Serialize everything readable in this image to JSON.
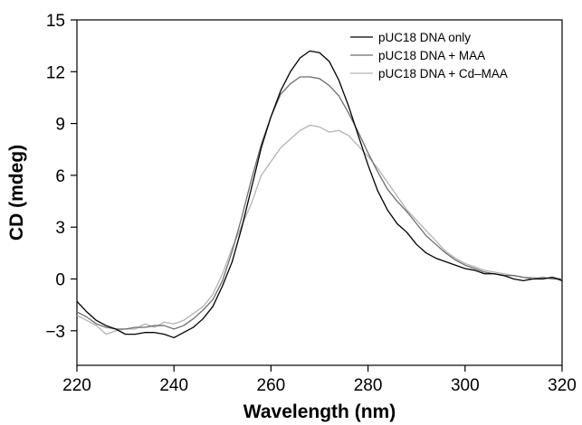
{
  "chart_data": {
    "type": "line",
    "xlabel": "Wavelength (nm)",
    "ylabel": "CD (mdeg)",
    "xlim": [
      220,
      320
    ],
    "ylim": [
      -5,
      15
    ],
    "xticks": [
      220,
      240,
      260,
      280,
      300,
      320
    ],
    "yticks": [
      -3,
      0,
      3,
      6,
      9,
      12,
      15
    ],
    "ytick_labels": [
      "−3",
      "0",
      "3",
      "6",
      "9",
      "12",
      "15"
    ],
    "legend_position": "top-right",
    "grid": false,
    "series": [
      {
        "name": "pUC18 DNA only",
        "color": "#000000",
        "points": [
          [
            220,
            -1.3
          ],
          [
            222,
            -1.9
          ],
          [
            224,
            -2.4
          ],
          [
            226,
            -2.7
          ],
          [
            228,
            -2.9
          ],
          [
            230,
            -3.2
          ],
          [
            232,
            -3.2
          ],
          [
            234,
            -3.1
          ],
          [
            236,
            -3.1
          ],
          [
            238,
            -3.2
          ],
          [
            240,
            -3.4
          ],
          [
            242,
            -3.1
          ],
          [
            244,
            -2.8
          ],
          [
            246,
            -2.3
          ],
          [
            248,
            -1.6
          ],
          [
            250,
            -0.4
          ],
          [
            252,
            1.0
          ],
          [
            254,
            3.0
          ],
          [
            256,
            5.3
          ],
          [
            258,
            7.6
          ],
          [
            260,
            9.4
          ],
          [
            262,
            10.9
          ],
          [
            264,
            12.0
          ],
          [
            266,
            12.8
          ],
          [
            268,
            13.2
          ],
          [
            270,
            13.1
          ],
          [
            272,
            12.6
          ],
          [
            274,
            11.5
          ],
          [
            276,
            10.0
          ],
          [
            278,
            8.3
          ],
          [
            280,
            6.6
          ],
          [
            282,
            5.1
          ],
          [
            284,
            4.0
          ],
          [
            286,
            3.2
          ],
          [
            288,
            2.7
          ],
          [
            290,
            2.0
          ],
          [
            292,
            1.5
          ],
          [
            294,
            1.2
          ],
          [
            296,
            1.0
          ],
          [
            298,
            0.8
          ],
          [
            300,
            0.6
          ],
          [
            302,
            0.5
          ],
          [
            304,
            0.3
          ],
          [
            306,
            0.3
          ],
          [
            308,
            0.2
          ],
          [
            310,
            0.0
          ],
          [
            312,
            -0.1
          ],
          [
            314,
            0.0
          ],
          [
            316,
            0.0
          ],
          [
            318,
            0.1
          ],
          [
            320,
            -0.1
          ]
        ]
      },
      {
        "name": "pUC18 DNA + MAA",
        "color": "#6e6e6e",
        "points": [
          [
            220,
            -1.9
          ],
          [
            222,
            -2.2
          ],
          [
            224,
            -2.6
          ],
          [
            226,
            -2.8
          ],
          [
            228,
            -2.9
          ],
          [
            230,
            -2.9
          ],
          [
            232,
            -2.8
          ],
          [
            234,
            -2.8
          ],
          [
            236,
            -2.7
          ],
          [
            238,
            -2.7
          ],
          [
            240,
            -2.9
          ],
          [
            242,
            -2.7
          ],
          [
            244,
            -2.3
          ],
          [
            246,
            -1.8
          ],
          [
            248,
            -1.2
          ],
          [
            250,
            -0.1
          ],
          [
            252,
            1.6
          ],
          [
            254,
            3.6
          ],
          [
            256,
            5.8
          ],
          [
            258,
            7.8
          ],
          [
            260,
            9.4
          ],
          [
            262,
            10.7
          ],
          [
            264,
            11.3
          ],
          [
            266,
            11.7
          ],
          [
            268,
            11.7
          ],
          [
            270,
            11.6
          ],
          [
            272,
            11.2
          ],
          [
            274,
            10.6
          ],
          [
            276,
            9.6
          ],
          [
            278,
            8.5
          ],
          [
            280,
            7.3
          ],
          [
            282,
            6.2
          ],
          [
            284,
            5.2
          ],
          [
            286,
            4.5
          ],
          [
            288,
            3.9
          ],
          [
            290,
            3.2
          ],
          [
            292,
            2.5
          ],
          [
            294,
            2.0
          ],
          [
            296,
            1.5
          ],
          [
            298,
            1.1
          ],
          [
            300,
            0.8
          ],
          [
            302,
            0.6
          ],
          [
            304,
            0.4
          ],
          [
            306,
            0.3
          ],
          [
            308,
            0.2
          ],
          [
            310,
            0.2
          ],
          [
            312,
            0.1
          ],
          [
            314,
            0.0
          ],
          [
            316,
            0.1
          ],
          [
            318,
            0.0
          ],
          [
            320,
            0.0
          ]
        ]
      },
      {
        "name": "pUC18 DNA + Cd–MAA",
        "color": "#b4b4b4",
        "points": [
          [
            220,
            -2.1
          ],
          [
            222,
            -2.4
          ],
          [
            224,
            -2.7
          ],
          [
            226,
            -3.2
          ],
          [
            228,
            -3.0
          ],
          [
            230,
            -2.9
          ],
          [
            232,
            -2.9
          ],
          [
            234,
            -2.6
          ],
          [
            236,
            -2.8
          ],
          [
            238,
            -2.5
          ],
          [
            240,
            -2.6
          ],
          [
            242,
            -2.4
          ],
          [
            244,
            -2.0
          ],
          [
            246,
            -1.6
          ],
          [
            248,
            -0.9
          ],
          [
            250,
            0.3
          ],
          [
            252,
            1.8
          ],
          [
            254,
            3.1
          ],
          [
            256,
            4.4
          ],
          [
            258,
            6.0
          ],
          [
            260,
            6.8
          ],
          [
            262,
            7.6
          ],
          [
            264,
            8.1
          ],
          [
            266,
            8.6
          ],
          [
            268,
            8.9
          ],
          [
            270,
            8.8
          ],
          [
            272,
            8.5
          ],
          [
            274,
            8.6
          ],
          [
            276,
            8.3
          ],
          [
            278,
            7.7
          ],
          [
            280,
            7.1
          ],
          [
            282,
            6.4
          ],
          [
            284,
            5.6
          ],
          [
            286,
            4.8
          ],
          [
            288,
            4.0
          ],
          [
            290,
            3.4
          ],
          [
            292,
            2.8
          ],
          [
            294,
            2.2
          ],
          [
            296,
            1.6
          ],
          [
            298,
            1.2
          ],
          [
            300,
            0.9
          ],
          [
            302,
            0.7
          ],
          [
            304,
            0.5
          ],
          [
            306,
            0.4
          ],
          [
            308,
            0.3
          ],
          [
            310,
            0.2
          ],
          [
            312,
            0.1
          ],
          [
            314,
            0.1
          ],
          [
            316,
            0.0
          ],
          [
            318,
            0.1
          ],
          [
            320,
            0.0
          ]
        ]
      }
    ]
  }
}
